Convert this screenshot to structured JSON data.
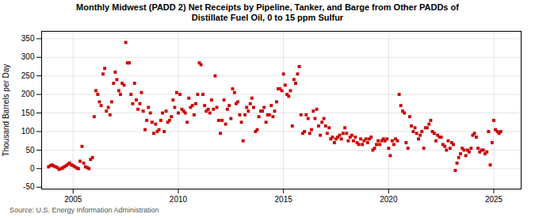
{
  "chart_data": {
    "type": "scatter",
    "title": "Monthly Midwest (PADD 2) Net Receipts by Pipeline, Tanker, and Barge from Other PADDs of\nDistillate Fuel Oil, 0 to 15 ppm Sulfur",
    "ylabel": "Thousand Barrels per Day",
    "source": "Source: U.S. Energy Information Administration",
    "color": "#cc0000",
    "marker": "square",
    "grid": true,
    "xlim": [
      2003.5,
      2026.3
    ],
    "ylim": [
      -55,
      370
    ],
    "xticks": [
      2005,
      2010,
      2015,
      2020,
      2025
    ],
    "yticks": [
      -50,
      0,
      50,
      100,
      150,
      200,
      250,
      300,
      350
    ],
    "x": [
      2003.83,
      2003.92,
      2004.0,
      2004.08,
      2004.17,
      2004.25,
      2004.33,
      2004.42,
      2004.5,
      2004.58,
      2004.67,
      2004.75,
      2004.83,
      2004.92,
      2005.0,
      2005.08,
      2005.17,
      2005.25,
      2005.33,
      2005.42,
      2005.5,
      2005.58,
      2005.67,
      2005.75,
      2005.83,
      2005.92,
      2006.0,
      2006.08,
      2006.17,
      2006.25,
      2006.33,
      2006.42,
      2006.5,
      2006.58,
      2006.67,
      2006.75,
      2006.83,
      2006.92,
      2007.0,
      2007.08,
      2007.17,
      2007.25,
      2007.33,
      2007.42,
      2007.5,
      2007.58,
      2007.67,
      2007.75,
      2007.83,
      2007.92,
      2008.0,
      2008.08,
      2008.17,
      2008.25,
      2008.33,
      2008.42,
      2008.5,
      2008.58,
      2008.67,
      2008.75,
      2008.83,
      2008.92,
      2009.0,
      2009.08,
      2009.17,
      2009.25,
      2009.33,
      2009.42,
      2009.5,
      2009.58,
      2009.67,
      2009.75,
      2009.83,
      2009.92,
      2010.0,
      2010.08,
      2010.17,
      2010.25,
      2010.33,
      2010.42,
      2010.5,
      2010.58,
      2010.67,
      2010.75,
      2010.83,
      2010.92,
      2011.0,
      2011.08,
      2011.17,
      2011.25,
      2011.33,
      2011.42,
      2011.5,
      2011.58,
      2011.67,
      2011.75,
      2011.83,
      2011.92,
      2012.0,
      2012.08,
      2012.17,
      2012.25,
      2012.33,
      2012.42,
      2012.5,
      2012.58,
      2012.67,
      2012.75,
      2012.83,
      2012.92,
      2013.0,
      2013.08,
      2013.17,
      2013.25,
      2013.33,
      2013.42,
      2013.5,
      2013.58,
      2013.67,
      2013.75,
      2013.83,
      2013.92,
      2014.0,
      2014.08,
      2014.17,
      2014.25,
      2014.33,
      2014.42,
      2014.5,
      2014.58,
      2014.67,
      2014.75,
      2014.83,
      2014.92,
      2015.0,
      2015.08,
      2015.17,
      2015.25,
      2015.33,
      2015.42,
      2015.5,
      2015.58,
      2015.67,
      2015.75,
      2015.83,
      2015.92,
      2016.0,
      2016.08,
      2016.17,
      2016.25,
      2016.33,
      2016.42,
      2016.5,
      2016.58,
      2016.67,
      2016.75,
      2016.83,
      2016.92,
      2017.0,
      2017.08,
      2017.17,
      2017.25,
      2017.33,
      2017.42,
      2017.5,
      2017.58,
      2017.67,
      2017.75,
      2017.83,
      2017.92,
      2018.0,
      2018.08,
      2018.17,
      2018.25,
      2018.33,
      2018.42,
      2018.5,
      2018.58,
      2018.67,
      2018.75,
      2018.83,
      2018.92,
      2019.0,
      2019.08,
      2019.17,
      2019.25,
      2019.33,
      2019.42,
      2019.5,
      2019.58,
      2019.67,
      2019.75,
      2019.83,
      2019.92,
      2020.0,
      2020.08,
      2020.17,
      2020.25,
      2020.33,
      2020.42,
      2020.5,
      2020.58,
      2020.67,
      2020.75,
      2020.83,
      2020.92,
      2021.0,
      2021.08,
      2021.17,
      2021.25,
      2021.33,
      2021.42,
      2021.5,
      2021.58,
      2021.67,
      2021.75,
      2021.83,
      2021.92,
      2022.0,
      2022.08,
      2022.17,
      2022.25,
      2022.33,
      2022.42,
      2022.5,
      2022.58,
      2022.67,
      2022.75,
      2022.83,
      2022.92,
      2023.0,
      2023.08,
      2023.17,
      2023.25,
      2023.33,
      2023.42,
      2023.5,
      2023.58,
      2023.67,
      2023.75,
      2023.83,
      2023.92,
      2024.0,
      2024.08,
      2024.17,
      2024.25,
      2024.33,
      2024.42,
      2024.5,
      2024.58,
      2024.67,
      2024.75,
      2024.83,
      2024.92,
      2025.0,
      2025.08,
      2025.17,
      2025.25,
      2025.33
    ],
    "values": [
      5,
      8,
      10,
      7,
      5,
      3,
      -2,
      0,
      2,
      5,
      8,
      12,
      15,
      10,
      8,
      5,
      2,
      0,
      20,
      60,
      15,
      5,
      3,
      0,
      25,
      30,
      140,
      210,
      200,
      180,
      170,
      255,
      270,
      155,
      165,
      145,
      180,
      230,
      260,
      240,
      210,
      200,
      230,
      225,
      340,
      285,
      285,
      200,
      175,
      230,
      185,
      160,
      175,
      205,
      155,
      105,
      130,
      165,
      150,
      125,
      95,
      120,
      100,
      105,
      130,
      150,
      100,
      155,
      125,
      130,
      140,
      185,
      165,
      205,
      150,
      200,
      160,
      155,
      150,
      125,
      190,
      165,
      170,
      145,
      175,
      200,
      285,
      280,
      200,
      170,
      155,
      160,
      150,
      185,
      160,
      250,
      165,
      130,
      95,
      130,
      185,
      120,
      160,
      170,
      135,
      215,
      205,
      175,
      180,
      145,
      125,
      75,
      145,
      165,
      155,
      175,
      190,
      165,
      100,
      105,
      140,
      155,
      155,
      165,
      125,
      145,
      145,
      170,
      140,
      155,
      180,
      215,
      215,
      210,
      255,
      225,
      200,
      195,
      210,
      115,
      240,
      230,
      255,
      275,
      145,
      95,
      100,
      145,
      135,
      95,
      105,
      155,
      135,
      160,
      115,
      90,
      125,
      135,
      115,
      95,
      110,
      80,
      85,
      70,
      80,
      85,
      90,
      80,
      95,
      110,
      95,
      75,
      85,
      90,
      75,
      85,
      70,
      65,
      80,
      65,
      75,
      80,
      70,
      80,
      85,
      50,
      55,
      65,
      75,
      65,
      75,
      80,
      75,
      80,
      55,
      35,
      75,
      65,
      80,
      75,
      200,
      170,
      155,
      150,
      70,
      55,
      140,
      115,
      100,
      110,
      95,
      80,
      90,
      100,
      55,
      110,
      110,
      120,
      130,
      100,
      95,
      75,
      90,
      85,
      85,
      65,
      60,
      50,
      75,
      55,
      70,
      65,
      -5,
      15,
      30,
      40,
      55,
      50,
      35,
      50,
      45,
      55,
      90,
      95,
      85,
      55,
      45,
      50,
      50,
      40,
      45,
      100,
      10,
      70,
      130,
      105,
      100,
      95,
      100
    ]
  }
}
